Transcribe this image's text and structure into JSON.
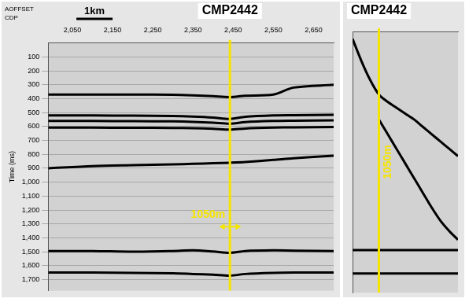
{
  "chart_data": [
    {
      "type": "line",
      "title": "CMP2442",
      "header_labels": [
        "AOFFSET",
        "CDP"
      ],
      "y_label": "Time (ms)",
      "xlim": [
        1990,
        2700
      ],
      "xticks": [
        2050,
        2150,
        2250,
        2350,
        2450,
        2550,
        2650
      ],
      "ylim": [
        0,
        1780
      ],
      "yticks": [
        100,
        200,
        300,
        400,
        500,
        600,
        700,
        800,
        900,
        1000,
        1100,
        1200,
        1300,
        1400,
        1500,
        1600,
        1700
      ],
      "grid": true,
      "x": [
        1990,
        2100,
        2200,
        2300,
        2350,
        2400,
        2442,
        2480,
        2550,
        2600,
        2700
      ],
      "series": [
        {
          "color": "#000000",
          "values": [
            370,
            370,
            370,
            372,
            376,
            382,
            388,
            378,
            370,
            320,
            300
          ]
        },
        {
          "color": "#000000",
          "values": [
            520,
            520,
            522,
            524,
            528,
            535,
            545,
            530,
            520,
            518,
            515
          ]
        },
        {
          "color": "#000000",
          "values": [
            560,
            560,
            561,
            563,
            566,
            572,
            580,
            568,
            560,
            558,
            555
          ]
        },
        {
          "color": "#000000",
          "values": [
            608,
            608,
            609,
            610,
            612,
            616,
            622,
            614,
            608,
            606,
            604
          ]
        },
        {
          "color": "#000000",
          "values": [
            900,
            885,
            878,
            872,
            868,
            864,
            860,
            855,
            840,
            828,
            810
          ]
        },
        {
          "color": "#000000",
          "values": [
            1495,
            1495,
            1500,
            1495,
            1490,
            1498,
            1508,
            1495,
            1490,
            1492,
            1495
          ]
        },
        {
          "color": "#000000",
          "values": [
            1650,
            1650,
            1652,
            1655,
            1660,
            1665,
            1672,
            1660,
            1652,
            1650,
            1650
          ]
        }
      ],
      "annotations": [
        {
          "type": "vline",
          "x": 2442,
          "color": "#f5e400"
        },
        {
          "type": "arrow",
          "x": [
            2415,
            2470
          ],
          "y": 1320,
          "text": "1050m",
          "color": "#f5e400"
        },
        {
          "type": "scale_bar",
          "x": [
            2060,
            2150
          ],
          "text": "1km"
        }
      ]
    },
    {
      "type": "line",
      "title": "CMP2442",
      "tick_labels": false,
      "grid": false,
      "xlim": [
        0,
        60
      ],
      "ylim": [
        0,
        1780
      ],
      "x": [
        0,
        5,
        10,
        15,
        20,
        25,
        30,
        35,
        40,
        45,
        50,
        55,
        60
      ],
      "series": [
        {
          "color": "#000000",
          "values": [
            1490,
            1490,
            1490,
            1490,
            1490,
            1490,
            1490,
            1490,
            1490,
            1490,
            1490,
            1490,
            1490
          ]
        },
        {
          "color": "#000000",
          "values": [
            1650,
            1650,
            1650,
            1650,
            1650,
            1650,
            1650,
            1650,
            1650,
            1650,
            1650,
            1650,
            1650
          ]
        },
        {
          "color": "#000000",
          "values": [
            50,
            200,
            330,
            430,
            480,
            520,
            560,
            600,
            650,
            700,
            750,
            800,
            850
          ]
        },
        {
          "color": "#000000",
          "values": [
            null,
            null,
            null,
            600,
            700,
            800,
            900,
            1000,
            1100,
            1200,
            1290,
            1360,
            1420
          ]
        }
      ],
      "annotations": [
        {
          "type": "vline",
          "x": 15,
          "text": "1050m",
          "color": "#f5e400"
        }
      ]
    }
  ]
}
